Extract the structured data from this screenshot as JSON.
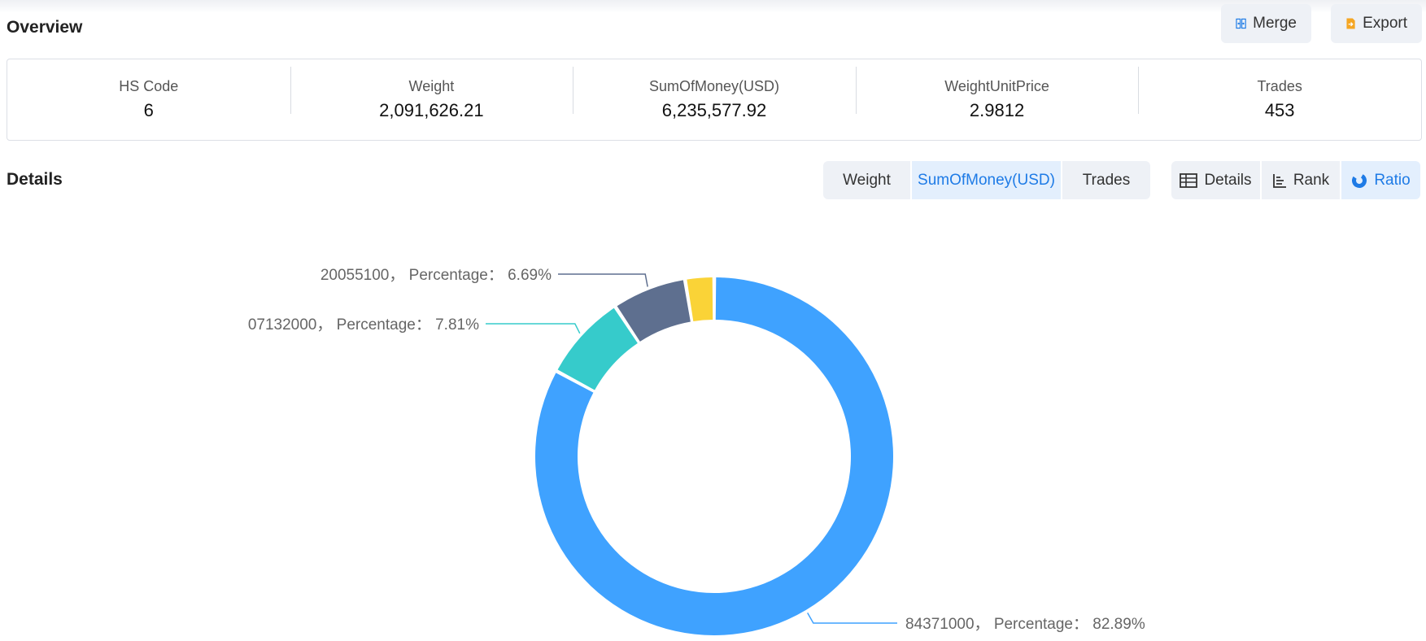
{
  "overview": {
    "title": "Overview",
    "merge_label": "Merge",
    "export_label": "Export"
  },
  "stats": [
    {
      "label": "HS Code",
      "value": "6"
    },
    {
      "label": "Weight",
      "value": "2,091,626.21"
    },
    {
      "label": "SumOfMoney(USD)",
      "value": "6,235,577.92"
    },
    {
      "label": "WeightUnitPrice",
      "value": "2.9812"
    },
    {
      "label": "Trades",
      "value": "453"
    }
  ],
  "details": {
    "title": "Details",
    "metric_tabs": [
      {
        "label": "Weight",
        "active": false
      },
      {
        "label": "SumOfMoney(USD)",
        "active": true
      },
      {
        "label": "Trades",
        "active": false
      }
    ],
    "view_tabs": [
      {
        "label": "Details",
        "icon": "table-icon",
        "active": false
      },
      {
        "label": "Rank",
        "icon": "rank-icon",
        "active": false
      },
      {
        "label": "Ratio",
        "icon": "donut-chart-icon",
        "active": true
      }
    ]
  },
  "colors": {
    "accent": "#1e7be6",
    "blue": "#3fa2ff",
    "teal": "#36cbcb",
    "slate": "#5e6f8f",
    "yellow": "#fad337"
  },
  "chart_data": {
    "type": "pie",
    "style": "donut",
    "slices": [
      {
        "name": "84371000",
        "percentage": 82.89,
        "color": "#3fa2ff",
        "label": "84371000，  Percentage： 82.89%"
      },
      {
        "name": "07132000",
        "percentage": 7.81,
        "color": "#36cbcb",
        "label": "07132000，  Percentage： 7.81%"
      },
      {
        "name": "20055100",
        "percentage": 6.69,
        "color": "#5e6f8f",
        "label": "20055100，  Percentage： 6.69%"
      },
      {
        "name": "",
        "percentage": 2.61,
        "color": "#fad337",
        "label": ""
      }
    ]
  }
}
